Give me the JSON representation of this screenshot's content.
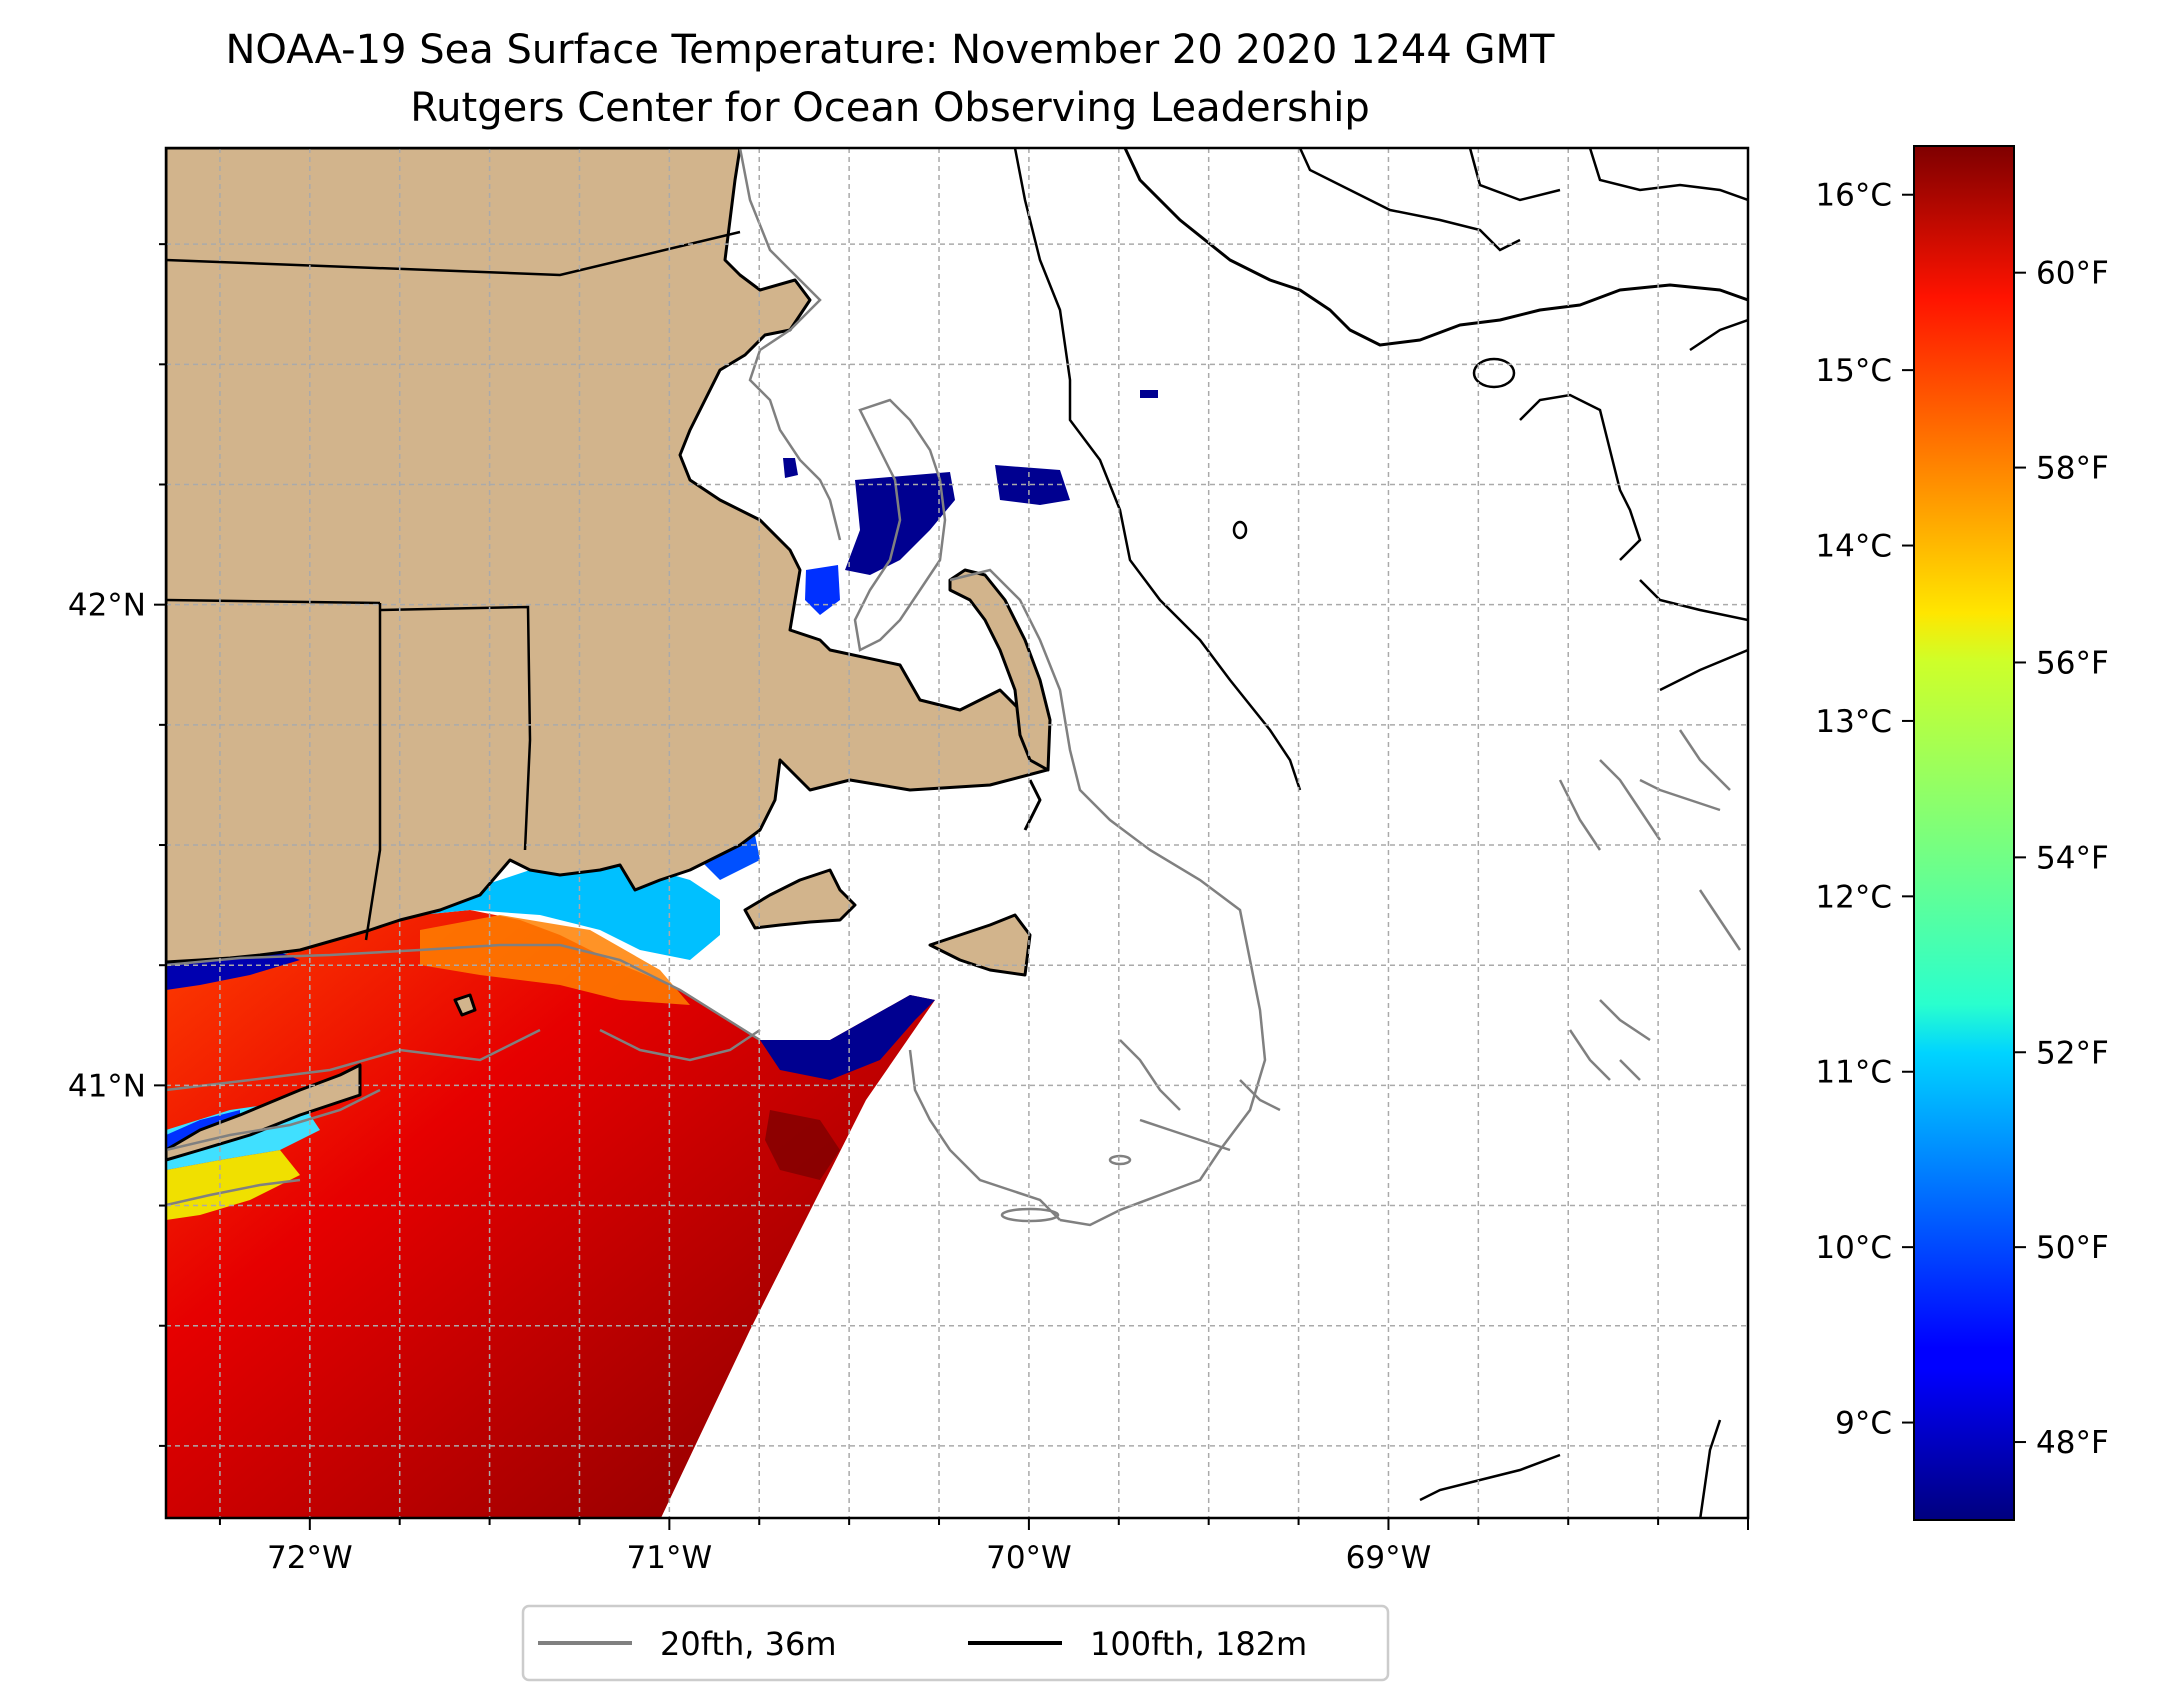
{
  "title": {
    "line1": "NOAA-19 Sea Surface Temperature: November 20 2020 1244 GMT",
    "line2": "Rutgers Center for Ocean Observing Leadership"
  },
  "map": {
    "lon_range": [
      -72.4,
      -68.0
    ],
    "lat_range": [
      40.1,
      42.95
    ],
    "lon_ticks": [
      {
        "value": -72,
        "label": "72°W"
      },
      {
        "value": -71,
        "label": "71°W"
      },
      {
        "value": -70,
        "label": "70°W"
      },
      {
        "value": -69,
        "label": "69°W"
      }
    ],
    "lat_ticks": [
      {
        "value": 42,
        "label": "42°N"
      },
      {
        "value": 41,
        "label": "41°N"
      }
    ],
    "minor_lon_step": 0.25,
    "minor_lat_step": 0.25,
    "gridlines": true,
    "land_color": "#d2b48c",
    "ocean_color": "#ffffff"
  },
  "colorbar": {
    "colormap": "jet",
    "range_f": [
      47.2,
      61.3
    ],
    "celsius_ticks": [
      {
        "value_c": 16,
        "label": "16°C"
      },
      {
        "value_c": 15,
        "label": "15°C"
      },
      {
        "value_c": 14,
        "label": "14°C"
      },
      {
        "value_c": 13,
        "label": "13°C"
      },
      {
        "value_c": 12,
        "label": "12°C"
      },
      {
        "value_c": 11,
        "label": "11°C"
      },
      {
        "value_c": 10,
        "label": "10°C"
      },
      {
        "value_c": 9,
        "label": "9°C"
      }
    ],
    "fahrenheit_ticks": [
      {
        "value_f": 60,
        "label": "60°F"
      },
      {
        "value_f": 58,
        "label": "58°F"
      },
      {
        "value_f": 56,
        "label": "56°F"
      },
      {
        "value_f": 54,
        "label": "54°F"
      },
      {
        "value_f": 52,
        "label": "52°F"
      },
      {
        "value_f": 50,
        "label": "50°F"
      },
      {
        "value_f": 48,
        "label": "48°F"
      }
    ]
  },
  "legend": {
    "items": [
      {
        "label": "20fth, 36m",
        "color": "#808080"
      },
      {
        "label": "100fth, 182m",
        "color": "#000000"
      }
    ]
  }
}
